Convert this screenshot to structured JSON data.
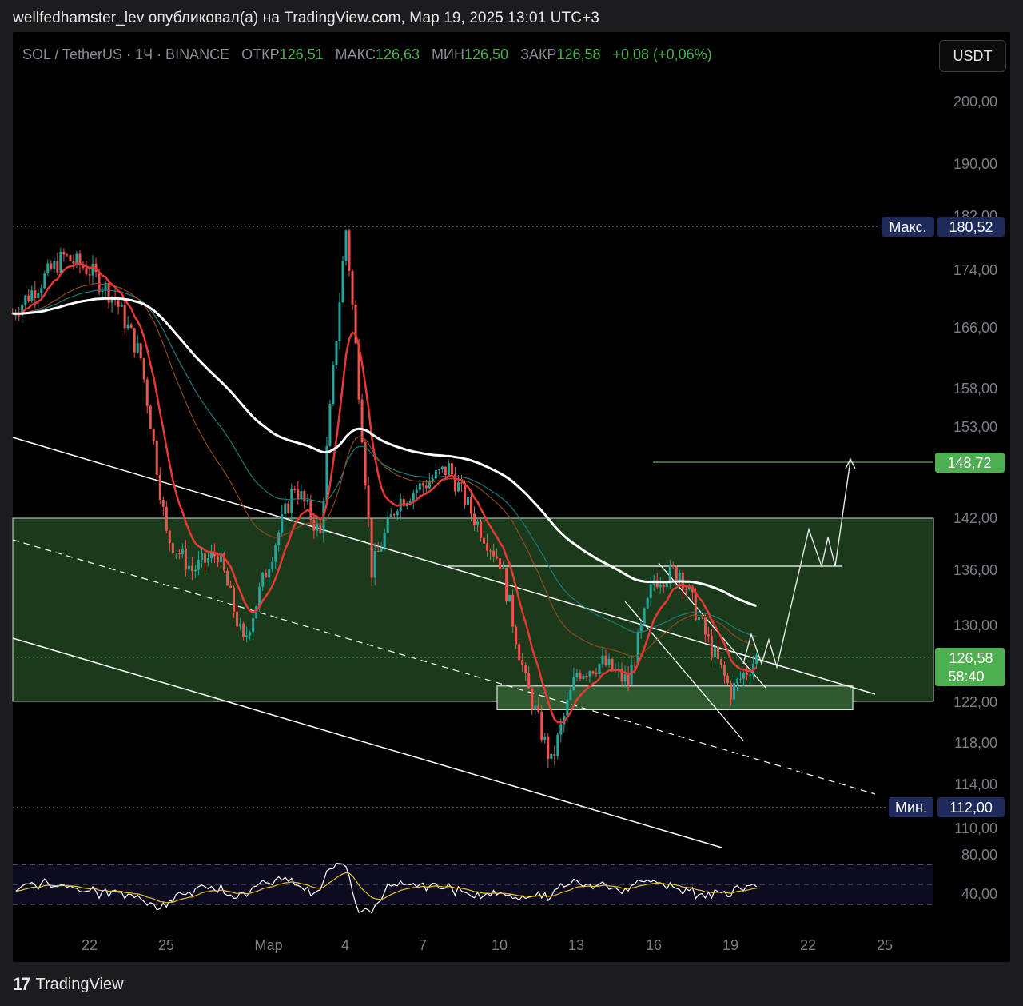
{
  "caption": "wellfedhamster_lev опубликовал(а) на TradingView.com, Мар 19, 2025 13:01 UTC+3",
  "legend": {
    "symbol": "SOL / TetherUS · 1Ч · BINANCE",
    "open_label": "ОТКР",
    "open": "126,51",
    "high_label": "МАКС",
    "high": "126,63",
    "low_label": "МИН",
    "low": "126,50",
    "close_label": "ЗАКР",
    "close": "126,58",
    "change": "+0,08 (+0,06%)"
  },
  "currency_button": "USDT",
  "footer": {
    "brand": "TradingView",
    "logo_icon": "tradingview-logo-icon"
  },
  "colors": {
    "up": "#26a69a",
    "down": "#ef5350",
    "accent_green": "#4caf50",
    "zone": "#1b3a1b",
    "ema_red": "#e53935",
    "ema_white": "#ffffff",
    "rsi": "#ffffff",
    "rsi_ma": "#e6c229",
    "label_navy": "#1e2b5a"
  },
  "chart_data": {
    "type": "line",
    "title": "SOL / TetherUS · 1Ч · BINANCE",
    "x_ticks": [
      "22",
      "25",
      "Мар",
      "4",
      "7",
      "10",
      "13",
      "16",
      "19",
      "22",
      "25"
    ],
    "y_ticks": [
      "200,00",
      "190,00",
      "182,00",
      "174,00",
      "166,00",
      "158,00",
      "153,00",
      "142,00",
      "136,00",
      "130,00",
      "122,00",
      "118,00",
      "114,00",
      "110,00"
    ],
    "rsi_ticks": [
      "80,00",
      "40,00"
    ],
    "price_labels": {
      "max_label": "Макс.",
      "max": "180,52",
      "min_label": "Мин.",
      "min": "112,00",
      "last": "126,58",
      "countdown": "58:40",
      "target": "148,72"
    },
    "x_domain": [
      "Feb 19",
      "Mar 26"
    ],
    "price_points": [
      {
        "x": "Feb 19",
        "y": 168
      },
      {
        "x": "Feb 20",
        "y": 172
      },
      {
        "x": "Feb 21",
        "y": 176
      },
      {
        "x": "Feb 22",
        "y": 174
      },
      {
        "x": "Feb 23",
        "y": 170
      },
      {
        "x": "Feb 24",
        "y": 162
      },
      {
        "x": "Feb 25",
        "y": 140
      },
      {
        "x": "Feb 26",
        "y": 136
      },
      {
        "x": "Feb 27",
        "y": 138
      },
      {
        "x": "Feb 28",
        "y": 128
      },
      {
        "x": "Mar 1",
        "y": 146
      },
      {
        "x": "Mar 2",
        "y": 140
      },
      {
        "x": "Mar 3",
        "y": 180
      },
      {
        "x": "Mar 4",
        "y": 136
      },
      {
        "x": "Mar 5",
        "y": 144
      },
      {
        "x": "Mar 6",
        "y": 146
      },
      {
        "x": "Mar 7",
        "y": 148
      },
      {
        "x": "Mar 8",
        "y": 142
      },
      {
        "x": "Mar 9",
        "y": 137
      },
      {
        "x": "Mar 10",
        "y": 124
      },
      {
        "x": "Mar 11",
        "y": 116
      },
      {
        "x": "Mar 12",
        "y": 125
      },
      {
        "x": "Mar 13",
        "y": 126
      },
      {
        "x": "Mar 14",
        "y": 124
      },
      {
        "x": "Mar 15",
        "y": 135
      },
      {
        "x": "Mar 16",
        "y": 136
      },
      {
        "x": "Mar 17",
        "y": 129
      },
      {
        "x": "Mar 18",
        "y": 123
      },
      {
        "x": "Mar 19",
        "y": 126.58
      }
    ],
    "zones": [
      {
        "y_low": 122.0,
        "y_high": 142.0
      },
      {
        "y_low": 121.2,
        "y_high": 123.6
      }
    ],
    "target_level": 148.72,
    "resistance_level": 136.0,
    "grid": false,
    "legend_position": "top-left"
  }
}
